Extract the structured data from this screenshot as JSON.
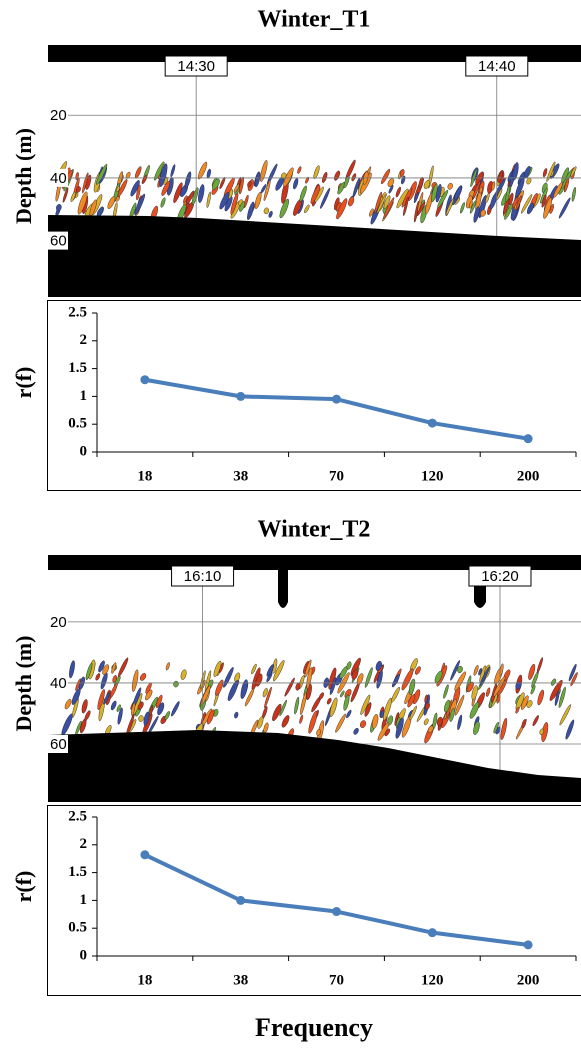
{
  "chart_data": [
    {
      "type": "echogram",
      "title": "Winter_T1",
      "ylabel": "Depth (m)",
      "time_labels": [
        "14:30",
        "14:40"
      ],
      "ylim": [
        3,
        78
      ],
      "yticks": [
        20,
        40,
        60
      ]
    },
    {
      "type": "line",
      "ylabel": "r(f)",
      "categories": [
        "18",
        "38",
        "70",
        "120",
        "200"
      ],
      "values": [
        1.3,
        1.0,
        0.95,
        0.52,
        0.24
      ],
      "color": "#4a7ebb",
      "ylim": [
        0,
        2.5
      ],
      "yticks": [
        0,
        0.5,
        1,
        1.5,
        2,
        2.5
      ]
    },
    {
      "type": "echogram",
      "title": "Winter_T2",
      "ylabel": "Depth (m)",
      "time_labels": [
        "16:10",
        "16:20"
      ],
      "ylim": [
        3,
        79
      ],
      "yticks": [
        20,
        40,
        60
      ]
    },
    {
      "type": "line",
      "ylabel": "r(f)",
      "xlabel": "Frequency",
      "categories": [
        "18",
        "38",
        "70",
        "120",
        "200"
      ],
      "values": [
        1.82,
        1.0,
        0.8,
        0.42,
        0.2
      ],
      "color": "#4a7ebb",
      "ylim": [
        0,
        2.5
      ],
      "yticks": [
        0,
        0.5,
        1,
        1.5,
        2,
        2.5
      ]
    }
  ]
}
